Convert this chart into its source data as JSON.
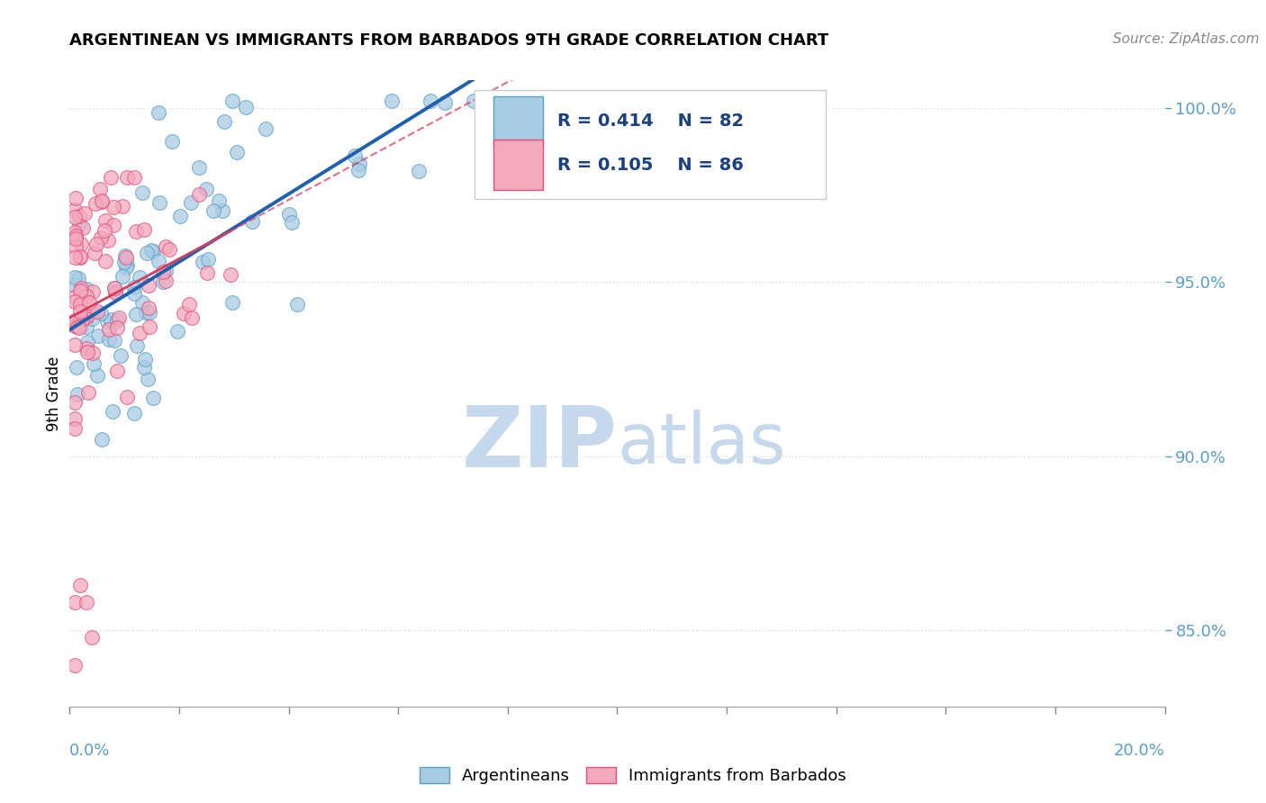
{
  "title": "ARGENTINEAN VS IMMIGRANTS FROM BARBADOS 9TH GRADE CORRELATION CHART",
  "source_text": "Source: ZipAtlas.com",
  "ylabel": "9th Grade",
  "xmin": 0.0,
  "xmax": 0.2,
  "ymin": 0.828,
  "ymax": 1.008,
  "blue_color": "#a8cce4",
  "blue_edge": "#5b9ec9",
  "pink_color": "#f4a8bb",
  "pink_edge": "#e05080",
  "line_blue": "#2060b0",
  "line_pink": "#d04060",
  "R_blue": 0.414,
  "N_blue": 82,
  "R_pink": 0.105,
  "N_pink": 86,
  "legend_label_blue": "Argentineans",
  "legend_label_pink": "Immigrants from Barbados",
  "watermark_zip": "ZIP",
  "watermark_atlas": "atlas",
  "watermark_color": "#c5d8ec",
  "background_color": "#ffffff",
  "grid_color": "#dddddd",
  "yticks": [
    0.85,
    0.9,
    0.95,
    1.0
  ],
  "ytick_color": "#5b9ec9",
  "title_fontsize": 13,
  "source_fontsize": 11,
  "axis_label_fontsize": 12,
  "tick_fontsize": 13
}
